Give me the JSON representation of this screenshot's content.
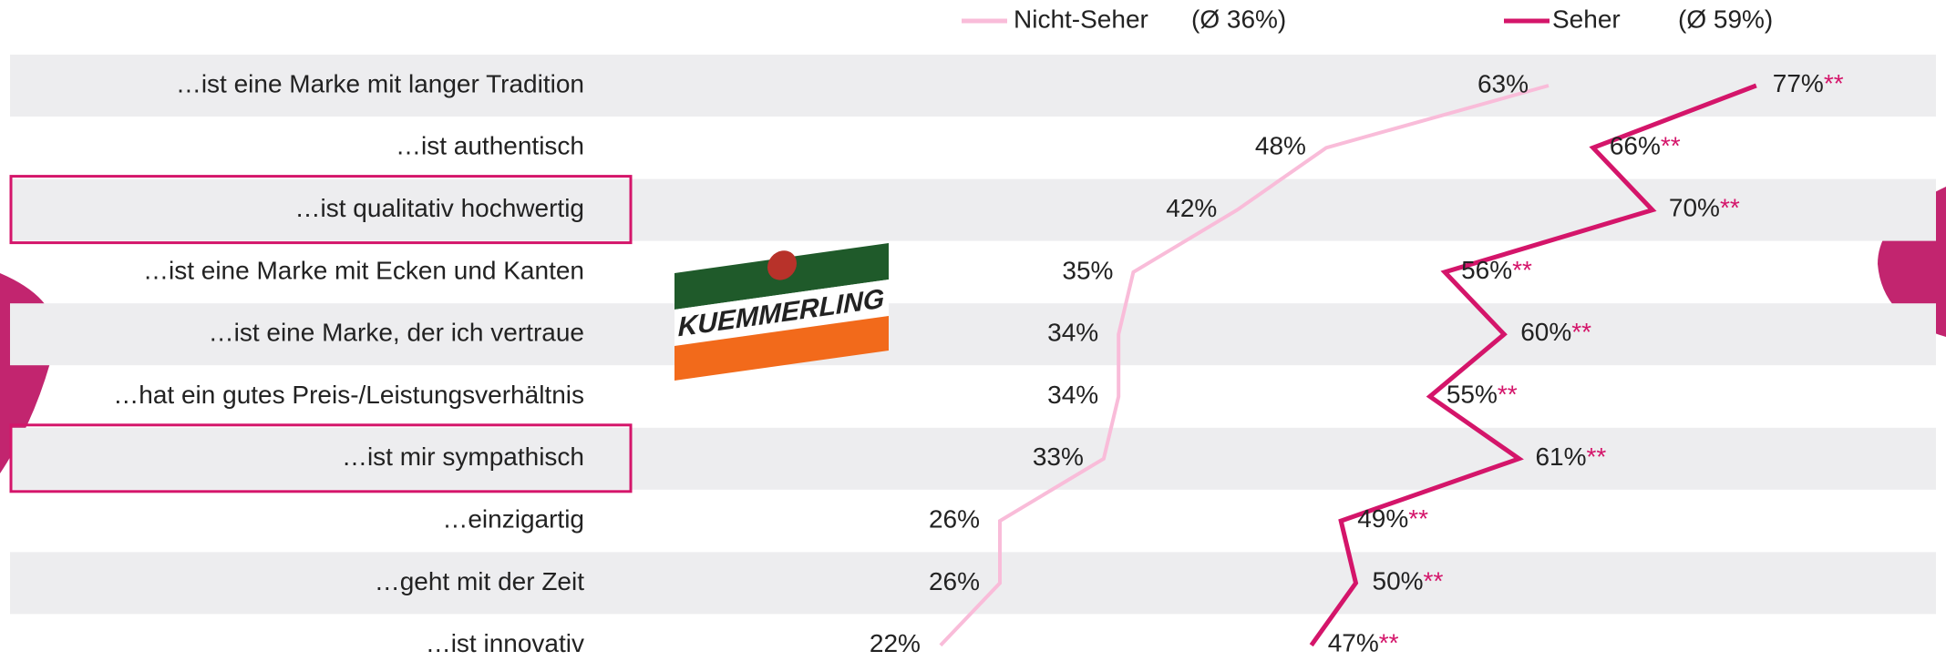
{
  "chart_data": {
    "type": "line",
    "orientation": "horizontal",
    "categories": [
      "…ist eine Marke mit langer Tradition",
      "…ist authentisch",
      "…ist qualitativ hochwertig",
      "…ist eine Marke mit Ecken und Kanten",
      "…ist eine Marke, der ich vertraue",
      "…hat ein gutes Preis-/Leistungsverhältnis",
      "…ist mir sympathisch",
      "…einzigartig",
      "…geht mit der Zeit",
      "…ist innovativ"
    ],
    "xlim": [
      0,
      100
    ],
    "highlighted": [
      2,
      6
    ],
    "logo": "KUEMMERLING",
    "series": [
      {
        "name": "Nicht-Seher",
        "average": "(Ø 36%)",
        "color": "#f9bcd9",
        "values": [
          63,
          48,
          42,
          35,
          34,
          34,
          33,
          26,
          26,
          22
        ],
        "value_labels": [
          "63%",
          "48%",
          "42%",
          "35%",
          "34%",
          "34%",
          "33%",
          "26%",
          "26%",
          "22%"
        ]
      },
      {
        "name": "Seher",
        "average": "(Ø 59%)",
        "color": "#d4156a",
        "values": [
          77,
          66,
          70,
          56,
          60,
          55,
          61,
          49,
          50,
          47
        ],
        "value_labels": [
          "77%",
          "66%",
          "70%",
          "56%",
          "60%",
          "55%",
          "61%",
          "49%",
          "50%",
          "47%"
        ],
        "significance": [
          "**",
          "**",
          "**",
          "**",
          "**",
          "**",
          "**",
          "**",
          "**",
          "**"
        ]
      }
    ]
  }
}
